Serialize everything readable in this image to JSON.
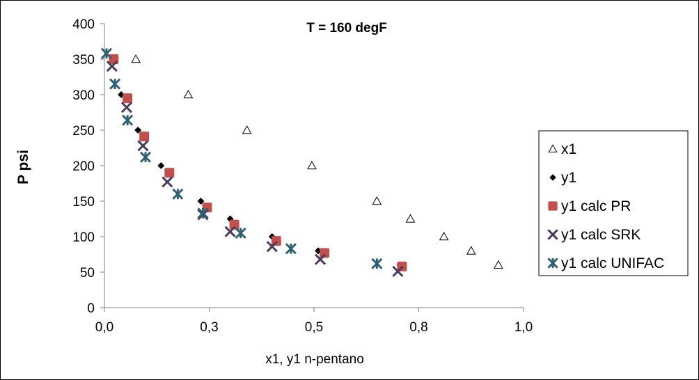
{
  "chart_data": {
    "type": "scatter",
    "title": "T = 160 degF",
    "xlabel": "x1, y1 n-pentano",
    "ylabel": "P psi",
    "xlim": [
      0,
      1
    ],
    "ylim": [
      0,
      400
    ],
    "x_ticks": [
      "0,0",
      "0,3",
      "0,5",
      "0,8",
      "1,0"
    ],
    "x_tick_values": [
      0,
      0.25,
      0.5,
      0.75,
      1.0
    ],
    "y_ticks": [
      "0",
      "50",
      "100",
      "150",
      "200",
      "250",
      "300",
      "350",
      "400"
    ],
    "y_tick_values": [
      0,
      50,
      100,
      150,
      200,
      250,
      300,
      350,
      400
    ],
    "grid": false,
    "legend_position": "right",
    "series": [
      {
        "name": "x1",
        "marker": "triangle-open",
        "color": "#000000",
        "points": [
          [
            0.075,
            350
          ],
          [
            0.2,
            300
          ],
          [
            0.34,
            250
          ],
          [
            0.495,
            200
          ],
          [
            0.65,
            150
          ],
          [
            0.73,
            125
          ],
          [
            0.81,
            100
          ],
          [
            0.875,
            80
          ],
          [
            0.94,
            60
          ]
        ]
      },
      {
        "name": "y1",
        "marker": "diamond",
        "color": "#000000",
        "points": [
          [
            0.04,
            300
          ],
          [
            0.08,
            250
          ],
          [
            0.135,
            200
          ],
          [
            0.23,
            150
          ],
          [
            0.3,
            125
          ],
          [
            0.4,
            100
          ],
          [
            0.51,
            80
          ],
          [
            0.705,
            60
          ]
        ]
      },
      {
        "name": "y1 calc PR",
        "marker": "square",
        "color": "#C0504D",
        "points": [
          [
            0.022,
            350
          ],
          [
            0.055,
            295
          ],
          [
            0.095,
            241
          ],
          [
            0.155,
            190
          ],
          [
            0.245,
            141
          ],
          [
            0.31,
            117
          ],
          [
            0.41,
            94
          ],
          [
            0.525,
            77
          ],
          [
            0.71,
            58
          ]
        ]
      },
      {
        "name": "y1 calc SRK",
        "marker": "x",
        "color": "#4B3A5E",
        "points": [
          [
            0.018,
            340
          ],
          [
            0.053,
            282
          ],
          [
            0.092,
            228
          ],
          [
            0.15,
            177
          ],
          [
            0.235,
            131
          ],
          [
            0.3,
            107
          ],
          [
            0.4,
            86
          ],
          [
            0.515,
            68
          ],
          [
            0.7,
            51
          ]
        ]
      },
      {
        "name": "y1 calc UNIFAC",
        "marker": "asterisk",
        "color": "#2F6070",
        "points": [
          [
            0.005,
            358
          ],
          [
            0.025,
            315
          ],
          [
            0.055,
            264
          ],
          [
            0.098,
            212
          ],
          [
            0.175,
            160
          ],
          [
            0.235,
            133
          ],
          [
            0.325,
            105
          ],
          [
            0.445,
            83
          ],
          [
            0.65,
            62
          ]
        ]
      }
    ]
  }
}
